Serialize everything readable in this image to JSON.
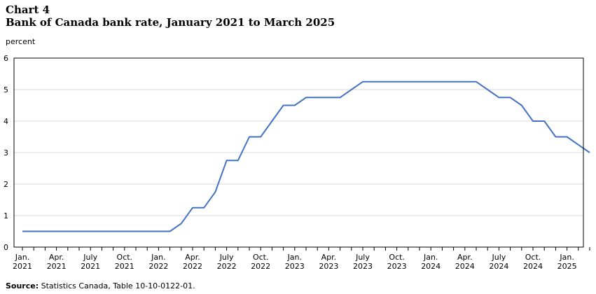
{
  "chart_label": "Chart 4",
  "chart_data": {
    "type": "line",
    "title": "Bank of Canada bank rate, January 2021 to March 2025",
    "ylabel": "percent",
    "xlabel": "",
    "ylim": [
      0,
      6
    ],
    "yticks": [
      0,
      1,
      2,
      3,
      4,
      5,
      6
    ],
    "grid": true,
    "x_tick_labels": [
      [
        "Jan.",
        "2021"
      ],
      [
        "Apr.",
        "2021"
      ],
      [
        "July",
        "2021"
      ],
      [
        "Oct.",
        "2021"
      ],
      [
        "Jan.",
        "2022"
      ],
      [
        "Apr.",
        "2022"
      ],
      [
        "July",
        "2022"
      ],
      [
        "Oct.",
        "2022"
      ],
      [
        "Jan.",
        "2023"
      ],
      [
        "Apr.",
        "2023"
      ],
      [
        "July",
        "2023"
      ],
      [
        "Oct.",
        "2023"
      ],
      [
        "Jan.",
        "2024"
      ],
      [
        "Apr.",
        "2024"
      ],
      [
        "July",
        "2024"
      ],
      [
        "Oct.",
        "2024"
      ],
      [
        "Jan.",
        "2025"
      ]
    ],
    "x": [
      "2021-01",
      "2021-02",
      "2021-03",
      "2021-04",
      "2021-05",
      "2021-06",
      "2021-07",
      "2021-08",
      "2021-09",
      "2021-10",
      "2021-11",
      "2021-12",
      "2022-01",
      "2022-02",
      "2022-03",
      "2022-04",
      "2022-05",
      "2022-06",
      "2022-07",
      "2022-08",
      "2022-09",
      "2022-10",
      "2022-11",
      "2022-12",
      "2023-01",
      "2023-02",
      "2023-03",
      "2023-04",
      "2023-05",
      "2023-06",
      "2023-07",
      "2023-08",
      "2023-09",
      "2023-10",
      "2023-11",
      "2023-12",
      "2024-01",
      "2024-02",
      "2024-03",
      "2024-04",
      "2024-05",
      "2024-06",
      "2024-07",
      "2024-08",
      "2024-09",
      "2024-10",
      "2024-11",
      "2024-12",
      "2025-01",
      "2025-02",
      "2025-03"
    ],
    "series": [
      {
        "values": [
          0.5,
          0.5,
          0.5,
          0.5,
          0.5,
          0.5,
          0.5,
          0.5,
          0.5,
          0.5,
          0.5,
          0.5,
          0.5,
          0.5,
          0.75,
          1.25,
          1.25,
          1.75,
          2.75,
          2.75,
          3.5,
          3.5,
          4.0,
          4.5,
          4.5,
          4.75,
          4.75,
          4.75,
          4.75,
          5.0,
          5.25,
          5.25,
          5.25,
          5.25,
          5.25,
          5.25,
          5.25,
          5.25,
          5.25,
          5.25,
          5.25,
          5.0,
          4.75,
          4.75,
          4.5,
          4.0,
          4.0,
          3.5,
          3.5,
          3.25,
          3.0
        ],
        "color": "#4472c4"
      }
    ]
  },
  "source": {
    "label": "Source:",
    "text": " Statistics Canada, Table 10-10-0122-01."
  }
}
